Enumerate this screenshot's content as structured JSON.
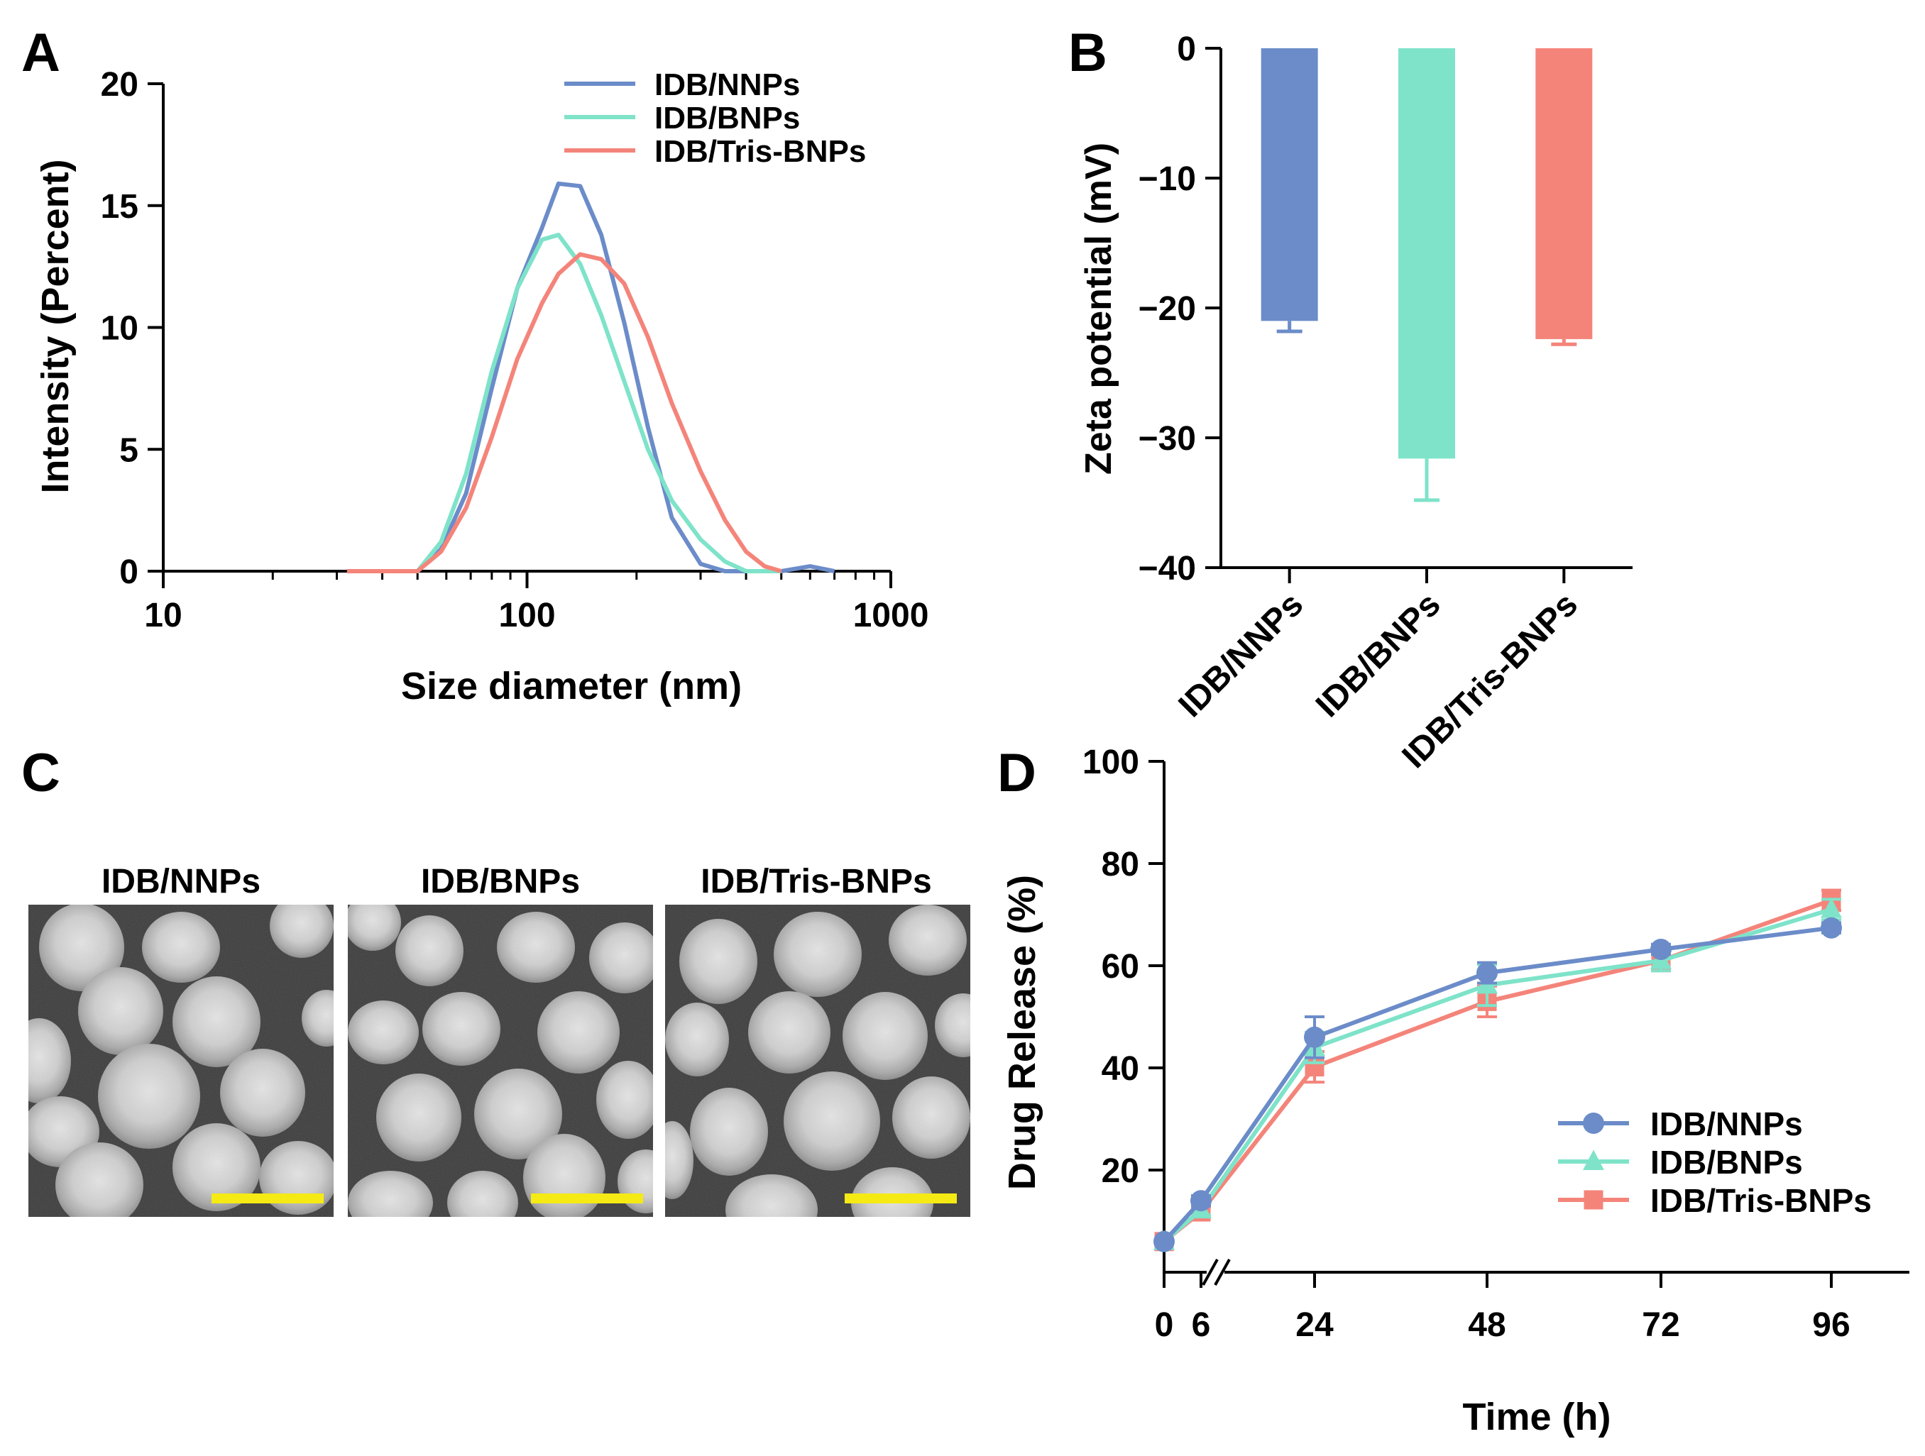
{
  "panel_labels": {
    "a": "A",
    "b": "B",
    "c": "C",
    "d": "D"
  },
  "colors": {
    "nnps": "#6b8cc9",
    "bnps": "#7ee3c9",
    "tris": "#f4847a",
    "scale_bar": "#f5ea14"
  },
  "chart_data": [
    {
      "id": "A",
      "type": "line",
      "xscale": "log",
      "xlabel": "Size diameter (nm)",
      "ylabel": "Intensity (Percent)",
      "xlim": [
        10,
        1000
      ],
      "ylim": [
        0,
        20
      ],
      "xticks": [
        "10",
        "100",
        "1000"
      ],
      "yticks": [
        "0",
        "5",
        "10",
        "15",
        "20"
      ],
      "legend_position": "top-right",
      "series": [
        {
          "name": "IDB/NNPs",
          "color": "#6b8cc9",
          "x": [
            32,
            40,
            50,
            58,
            68,
            80,
            94,
            110,
            122,
            140,
            160,
            185,
            215,
            250,
            300,
            350,
            400,
            500,
            600,
            700
          ],
          "y": [
            0,
            0,
            0,
            0.9,
            3.2,
            7.5,
            11.6,
            14.1,
            15.9,
            15.8,
            13.8,
            10.2,
            5.9,
            2.2,
            0.3,
            0,
            0,
            0,
            0.2,
            0
          ]
        },
        {
          "name": "IDB/BNPs",
          "color": "#7ee3c9",
          "x": [
            32,
            40,
            50,
            58,
            68,
            80,
            94,
            110,
            122,
            140,
            160,
            185,
            215,
            250,
            300,
            350,
            400,
            500
          ],
          "y": [
            0,
            0,
            0,
            1.2,
            4.0,
            8.2,
            11.6,
            13.6,
            13.8,
            12.6,
            10.5,
            7.8,
            5.0,
            2.9,
            1.3,
            0.4,
            0,
            0
          ]
        },
        {
          "name": "IDB/Tris-BNPs",
          "color": "#f4847a",
          "x": [
            32,
            40,
            50,
            58,
            68,
            80,
            94,
            110,
            122,
            140,
            160,
            185,
            215,
            250,
            300,
            350,
            400,
            450,
            500
          ],
          "y": [
            0,
            0,
            0,
            0.8,
            2.6,
            5.5,
            8.7,
            11.0,
            12.2,
            13.0,
            12.8,
            11.8,
            9.6,
            6.9,
            4.1,
            2.1,
            0.8,
            0.2,
            0
          ]
        }
      ]
    },
    {
      "id": "B",
      "type": "bar",
      "ylabel": "Zeta potential (mV)",
      "ylim": [
        -40,
        0
      ],
      "yticks": [
        "0",
        "−10",
        "−20",
        "−30",
        "−40"
      ],
      "categories": [
        "IDB/NNPs",
        "IDB/BNPs",
        "IDB/Tris-BNPs"
      ],
      "values": [
        -21.0,
        -31.6,
        -22.4
      ],
      "errors": [
        0.8,
        3.2,
        0.4
      ],
      "colors": [
        "#6b8cc9",
        "#7ee3c9",
        "#f4847a"
      ]
    },
    {
      "id": "D",
      "type": "line",
      "xlabel": "Time (h)",
      "ylabel": "Drug Release   (%)",
      "ylim": [
        0,
        100
      ],
      "yticks": [
        "20",
        "40",
        "60",
        "80",
        "100"
      ],
      "x": [
        0,
        6,
        24,
        48,
        72,
        96
      ],
      "xticks": [
        "0",
        "6",
        "24",
        "48",
        "72",
        "96"
      ],
      "axis_break": "between 6 and 24",
      "legend_position": "bottom-right",
      "series": [
        {
          "name": "IDB/NNPs",
          "marker": "circle",
          "color": "#6b8cc9",
          "values": [
            6.0,
            14.0,
            46.0,
            58.6,
            63.2,
            67.4
          ],
          "errors": [
            0.5,
            1.0,
            4.0,
            2.0,
            1.0,
            1.0
          ]
        },
        {
          "name": "IDB/BNPs",
          "marker": "triangle",
          "color": "#7ee3c9",
          "values": [
            6.0,
            12.2,
            44.0,
            56.2,
            61.0,
            71.0
          ],
          "errors": [
            0.5,
            1.0,
            3.0,
            4.0,
            2.0,
            2.0
          ]
        },
        {
          "name": "IDB/Tris-BNPs",
          "marker": "square",
          "color": "#f4847a",
          "values": [
            6.0,
            11.8,
            40.2,
            53.0,
            61.0,
            72.8
          ],
          "errors": [
            0.5,
            1.0,
            3.0,
            3.0,
            2.0,
            2.0
          ]
        }
      ]
    }
  ],
  "panel_c": {
    "images": [
      {
        "title": "IDB/NNPs"
      },
      {
        "title": "IDB/BNPs"
      },
      {
        "title": "IDB/Tris-BNPs"
      }
    ]
  }
}
